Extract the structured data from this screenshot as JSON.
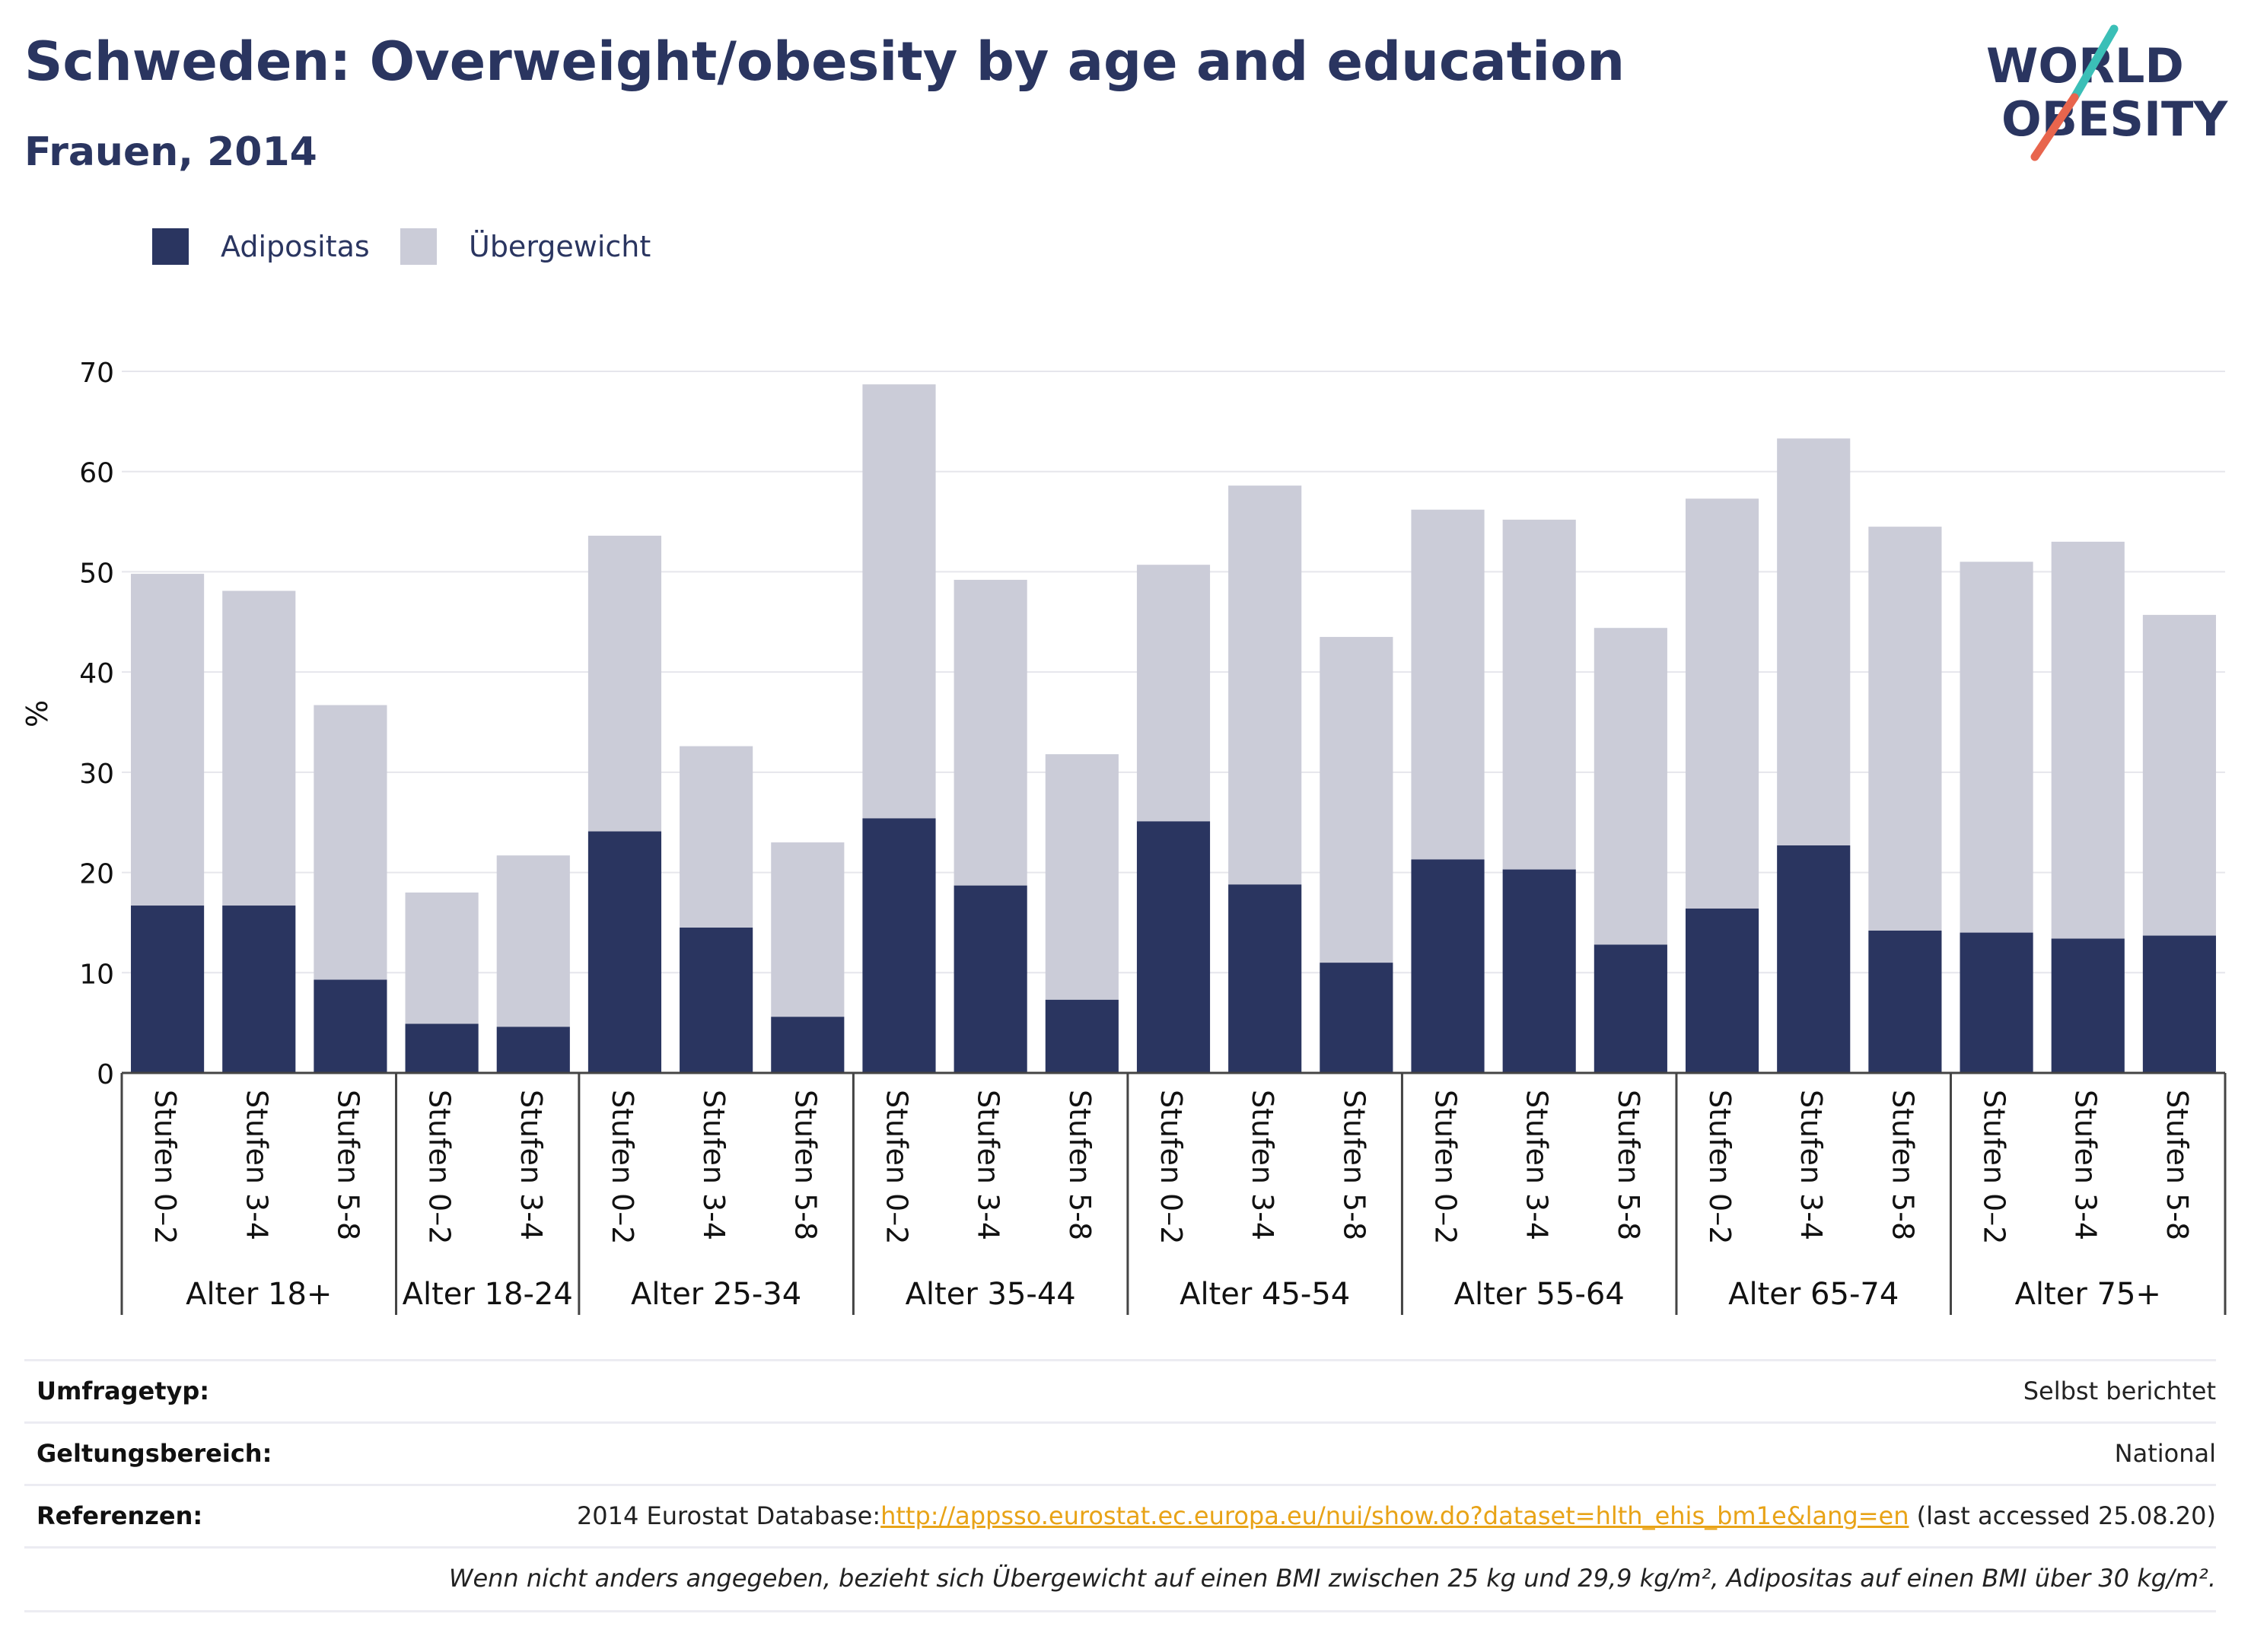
{
  "header": {
    "title": "Schweden: Overweight/obesity by age and education",
    "subtitle": "Frauen, 2014"
  },
  "logo": {
    "line1": "WORLD",
    "line2": "OBESITY",
    "colors": {
      "text": "#2a3560",
      "slash_top": "#3bbfb7",
      "slash_bottom": "#e8654d"
    }
  },
  "chart_data": {
    "type": "bar",
    "stacked": true,
    "ylabel": "%",
    "ylim": [
      0,
      70
    ],
    "yticks": [
      0,
      10,
      20,
      30,
      40,
      50,
      60,
      70
    ],
    "grid": true,
    "legend_position": "top-left",
    "groups": [
      {
        "label": "Alter 18+",
        "categories": [
          "Stufen 0–2",
          "Stufen 3-4",
          "Stufen 5-8"
        ]
      },
      {
        "label": "Alter 18-24",
        "categories": [
          "Stufen 0–2",
          "Stufen 3-4"
        ]
      },
      {
        "label": "Alter 25-34",
        "categories": [
          "Stufen 0–2",
          "Stufen 3-4",
          "Stufen 5-8"
        ]
      },
      {
        "label": "Alter 35-44",
        "categories": [
          "Stufen 0–2",
          "Stufen 3-4",
          "Stufen 5-8"
        ]
      },
      {
        "label": "Alter 45-54",
        "categories": [
          "Stufen 0–2",
          "Stufen 3-4",
          "Stufen 5-8"
        ]
      },
      {
        "label": "Alter 55-64",
        "categories": [
          "Stufen 0–2",
          "Stufen 3-4",
          "Stufen 5-8"
        ]
      },
      {
        "label": "Alter 65-74",
        "categories": [
          "Stufen 0–2",
          "Stufen 3-4",
          "Stufen 5-8"
        ]
      },
      {
        "label": "Alter 75+",
        "categories": [
          "Stufen 0–2",
          "Stufen 3-4",
          "Stufen 5-8"
        ]
      }
    ],
    "series": [
      {
        "name": "Adipositas",
        "color": "#2a3560",
        "values": [
          16.7,
          16.7,
          9.3,
          4.9,
          4.6,
          24.1,
          14.5,
          5.6,
          25.4,
          18.7,
          7.3,
          25.1,
          18.8,
          11.0,
          21.3,
          20.3,
          12.8,
          16.4,
          22.7,
          14.2,
          14.0,
          13.4,
          13.7
        ]
      },
      {
        "name": "Übergewicht",
        "color": "#cbccd8",
        "values": [
          33.1,
          31.4,
          27.4,
          13.1,
          17.1,
          29.5,
          18.1,
          17.4,
          43.3,
          30.5,
          24.5,
          25.6,
          39.8,
          32.5,
          34.9,
          34.9,
          31.6,
          40.9,
          40.6,
          40.3,
          37.0,
          39.6,
          32.0
        ]
      }
    ]
  },
  "info": {
    "rows": [
      {
        "label": "Umfragetyp:",
        "value": "Selbst berichtet"
      },
      {
        "label": "Geltungsbereich:",
        "value": "National"
      },
      {
        "label": "Referenzen:",
        "value_prefix": "2014 Eurostat Database:",
        "link": "http://appsso.eurostat.ec.europa.eu/nui/show.do?dataset=hlth_ehis_bm1e&lang=en",
        "value_suffix": " (last accessed 25.08.20)"
      }
    ],
    "note": "Wenn nicht anders angegeben, bezieht sich Übergewicht auf einen BMI zwischen 25 kg und 29,9 kg/m², Adipositas auf einen BMI über 30 kg/m²."
  }
}
